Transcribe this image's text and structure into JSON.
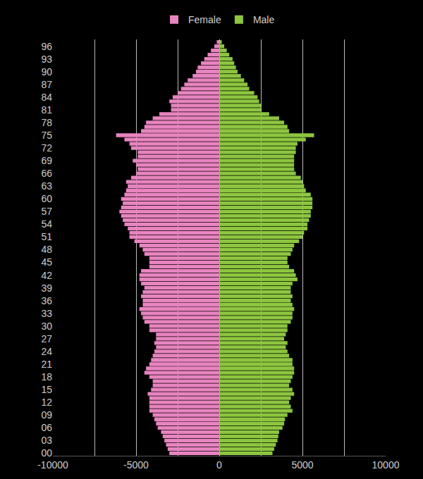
{
  "chart_data": {
    "type": "bar",
    "orientation": "horizontal",
    "grid": true,
    "legend": "top",
    "categories": [
      "00",
      null,
      null,
      "03",
      null,
      null,
      "06",
      null,
      null,
      "09",
      null,
      null,
      "12",
      null,
      null,
      "15",
      null,
      null,
      "18",
      null,
      null,
      "21",
      null,
      null,
      "24",
      null,
      null,
      "27",
      null,
      null,
      "30",
      null,
      null,
      "33",
      null,
      null,
      "36",
      null,
      null,
      "39",
      null,
      null,
      "42",
      null,
      null,
      "45",
      null,
      null,
      "48",
      null,
      null,
      "51",
      null,
      null,
      "54",
      null,
      null,
      "57",
      null,
      null,
      "60",
      null,
      null,
      "63",
      null,
      null,
      "66",
      null,
      null,
      "69",
      null,
      null,
      "72",
      null,
      null,
      "75",
      null,
      null,
      "78",
      null,
      null,
      "81",
      null,
      null,
      "84",
      null,
      null,
      "87",
      null,
      null,
      "90",
      null,
      null,
      "93",
      null,
      null,
      "96",
      null
    ],
    "series": [
      {
        "name": "Female",
        "color": "#e884c0",
        "values": [
          -3000,
          -3100,
          -3200,
          -3300,
          -3400,
          -3500,
          -3700,
          -3800,
          -3900,
          -4000,
          -4200,
          -4200,
          -4200,
          -4200,
          -4300,
          -4100,
          -4000,
          -4000,
          -4200,
          -4500,
          -4400,
          -4200,
          -4100,
          -4000,
          -3900,
          -3800,
          -3900,
          -3800,
          -3800,
          -4200,
          -4200,
          -4500,
          -4600,
          -4700,
          -4800,
          -4600,
          -4600,
          -4700,
          -4600,
          -4500,
          -4700,
          -4800,
          -4800,
          -4700,
          -4200,
          -4200,
          -4200,
          -4500,
          -4600,
          -4800,
          -5100,
          -5400,
          -5400,
          -5500,
          -5700,
          -5800,
          -5900,
          -6000,
          -5900,
          -5800,
          -5900,
          -5700,
          -5600,
          -5500,
          -5600,
          -5300,
          -5000,
          -4900,
          -5000,
          -5200,
          -4900,
          -4900,
          -5300,
          -5400,
          -5700,
          -6200,
          -4700,
          -4500,
          -4400,
          -4000,
          -3600,
          -2900,
          -2900,
          -3000,
          -2800,
          -2500,
          -2300,
          -2100,
          -1900,
          -1600,
          -1400,
          -1300,
          -1100,
          -900,
          -700,
          -500,
          -300,
          -150
        ]
      },
      {
        "name": "Male",
        "color": "#8cc63f",
        "values": [
          3200,
          3300,
          3400,
          3500,
          3550,
          3600,
          3800,
          3900,
          3950,
          4100,
          4400,
          4300,
          4200,
          4300,
          4500,
          4400,
          4200,
          4300,
          4400,
          4500,
          4500,
          4400,
          4400,
          4200,
          4100,
          4000,
          4100,
          3900,
          4000,
          4100,
          4100,
          4300,
          4400,
          4400,
          4500,
          4400,
          4300,
          4400,
          4300,
          4300,
          4400,
          4700,
          4600,
          4500,
          4200,
          4100,
          4100,
          4300,
          4400,
          4500,
          4800,
          5000,
          5100,
          5300,
          5300,
          5400,
          5500,
          5500,
          5600,
          5600,
          5600,
          5500,
          5200,
          5100,
          5000,
          4900,
          4600,
          4500,
          4500,
          4500,
          4500,
          4600,
          4600,
          4700,
          5200,
          5700,
          4200,
          4100,
          3900,
          3600,
          3000,
          2500,
          2500,
          2400,
          2300,
          2100,
          1800,
          1700,
          1500,
          1300,
          1100,
          1000,
          900,
          800,
          600,
          450,
          300,
          150
        ]
      }
    ],
    "xlim": [
      -10000,
      10000
    ],
    "xticks": [
      -10000,
      -5000,
      0,
      5000,
      10000
    ]
  }
}
